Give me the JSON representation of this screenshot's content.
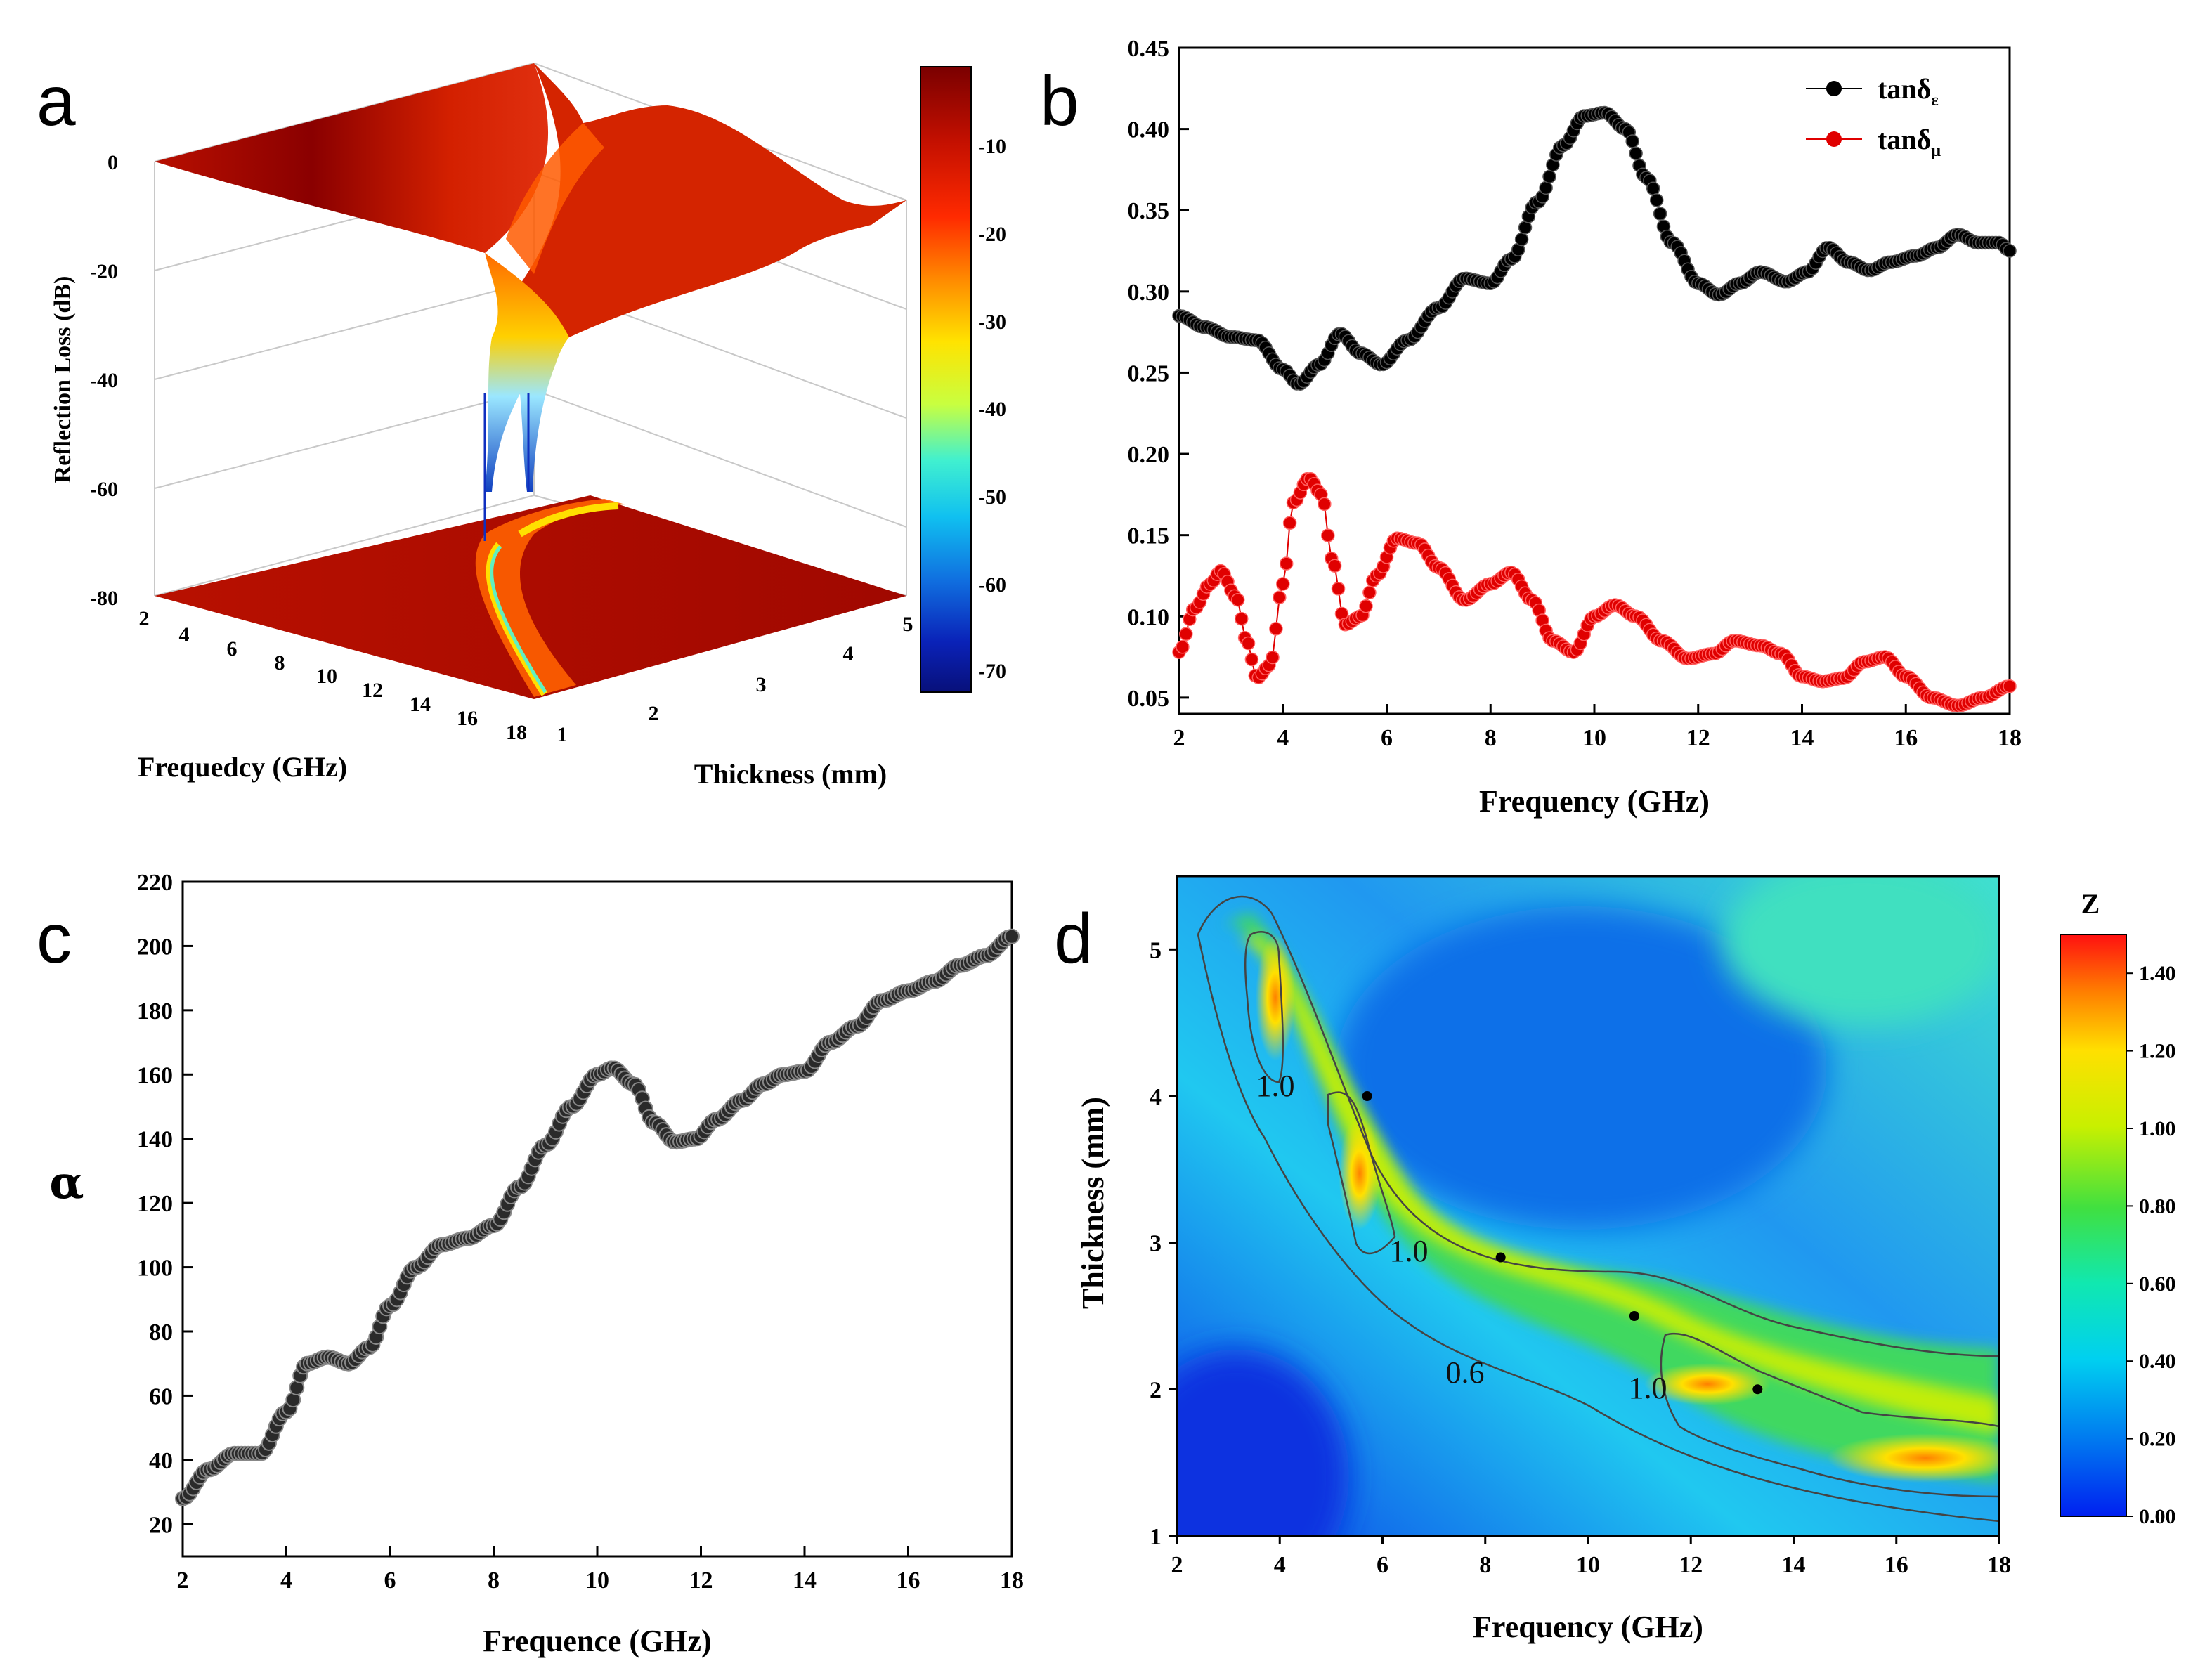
{
  "panels": {
    "a": {
      "letter": "a",
      "z_axis_title": "Reflection Loss (dB)",
      "z_ticks": [
        "0",
        "-20",
        "-40",
        "-60",
        "-80"
      ],
      "x_axis_title": "Frequedcy (GHz)",
      "x_ticks": [
        "2",
        "4",
        "6",
        "8",
        "10",
        "12",
        "14",
        "16",
        "18"
      ],
      "y_axis_title": "Thickness (mm)",
      "y_ticks": [
        "1",
        "2",
        "3",
        "4",
        "5"
      ],
      "colorbar_ticks": [
        "-10",
        "-20",
        "-30",
        "-40",
        "-50",
        "-60",
        "-70"
      ]
    },
    "b": {
      "letter": "b",
      "x_axis_title": "Frequency (GHz)",
      "x_ticks": [
        "2",
        "4",
        "6",
        "8",
        "10",
        "12",
        "14",
        "16",
        "18"
      ],
      "y_ticks": [
        "0.05",
        "0.10",
        "0.15",
        "0.20",
        "0.25",
        "0.30",
        "0.35",
        "0.40",
        "0.45"
      ],
      "legend": [
        {
          "base": "tanδ",
          "sub": "ε",
          "color": "#000000"
        },
        {
          "base": "tanδ",
          "sub": "μ",
          "color": "#e00000"
        }
      ]
    },
    "c": {
      "letter": "c",
      "x_axis_title": "Frequence (GHz)",
      "y_axis_title": "α",
      "x_ticks": [
        "2",
        "4",
        "6",
        "8",
        "10",
        "12",
        "14",
        "16",
        "18"
      ],
      "y_ticks": [
        "20",
        "40",
        "60",
        "80",
        "100",
        "120",
        "140",
        "160",
        "180",
        "200",
        "220"
      ]
    },
    "d": {
      "letter": "d",
      "x_axis_title": "Frequency (GHz)",
      "y_axis_title": "Thickness (mm)",
      "x_ticks": [
        "2",
        "4",
        "6",
        "8",
        "10",
        "12",
        "14",
        "16",
        "18"
      ],
      "y_ticks": [
        "1",
        "2",
        "3",
        "4",
        "5"
      ],
      "colorbar_title": "Z",
      "colorbar_ticks": [
        "0.00",
        "0.20",
        "0.40",
        "0.60",
        "0.80",
        "1.00",
        "1.20",
        "1.40"
      ],
      "contour_labels": [
        "1.0",
        "1.0",
        "1.0",
        "0.6"
      ]
    }
  },
  "chart_data": [
    {
      "panel": "a",
      "type": "surface3d",
      "title": "",
      "xlabel": "Frequedcy (GHz)",
      "ylabel": "Thickness (mm)",
      "zlabel": "Reflection Loss (dB)",
      "xlim": [
        2,
        18
      ],
      "ylim": [
        1,
        5
      ],
      "zlim": [
        -80,
        0
      ],
      "colorbar_range": [
        -73,
        -2
      ],
      "min_rl_db": -70,
      "note": "Reflection-loss surface; deep minimum along a narrow valley near 4-6 GHz"
    },
    {
      "panel": "b",
      "type": "line",
      "xlabel": "Frequency (GHz)",
      "ylabel": "",
      "xlim": [
        2,
        18
      ],
      "ylim": [
        0.04,
        0.45
      ],
      "series": [
        {
          "name": "tanδε",
          "color": "#000000",
          "x": [
            2,
            2.5,
            3,
            3.5,
            4,
            4.3,
            4.7,
            5.1,
            5.5,
            5.9,
            6.4,
            7,
            7.5,
            8,
            8.4,
            8.9,
            9.4,
            9.8,
            10.2,
            10.6,
            11,
            11.5,
            12,
            12.4,
            12.8,
            13.2,
            13.7,
            14.1,
            14.5,
            14.9,
            15.3,
            15.7,
            16.2,
            16.6,
            17,
            17.4,
            17.8,
            18
          ],
          "values": [
            0.285,
            0.278,
            0.272,
            0.27,
            0.252,
            0.243,
            0.255,
            0.274,
            0.262,
            0.255,
            0.27,
            0.29,
            0.308,
            0.305,
            0.32,
            0.355,
            0.39,
            0.408,
            0.41,
            0.4,
            0.37,
            0.33,
            0.305,
            0.298,
            0.305,
            0.312,
            0.306,
            0.312,
            0.327,
            0.318,
            0.313,
            0.318,
            0.322,
            0.327,
            0.335,
            0.33,
            0.33,
            0.325
          ]
        },
        {
          "name": "tanδμ",
          "color": "#e00000",
          "x": [
            2,
            2.3,
            2.6,
            2.8,
            3.1,
            3.3,
            3.5,
            3.75,
            4,
            4.2,
            4.5,
            4.75,
            4.95,
            5.2,
            5.5,
            5.8,
            6.2,
            6.6,
            7,
            7.5,
            8,
            8.4,
            8.8,
            9.2,
            9.6,
            10,
            10.4,
            10.8,
            11.3,
            11.8,
            12.3,
            12.7,
            13.2,
            13.6,
            14,
            14.4,
            14.8,
            15.2,
            15.6,
            16,
            16.5,
            17,
            17.5,
            18
          ],
          "values": [
            0.078,
            0.105,
            0.12,
            0.128,
            0.112,
            0.085,
            0.062,
            0.07,
            0.12,
            0.17,
            0.185,
            0.175,
            0.135,
            0.095,
            0.1,
            0.125,
            0.148,
            0.145,
            0.13,
            0.11,
            0.12,
            0.127,
            0.11,
            0.085,
            0.078,
            0.1,
            0.107,
            0.1,
            0.085,
            0.074,
            0.077,
            0.085,
            0.082,
            0.077,
            0.063,
            0.06,
            0.062,
            0.072,
            0.075,
            0.063,
            0.05,
            0.045,
            0.05,
            0.057
          ]
        }
      ]
    },
    {
      "panel": "c",
      "type": "line",
      "xlabel": "Frequence (GHz)",
      "ylabel": "α",
      "xlim": [
        2,
        18
      ],
      "ylim": [
        10,
        220
      ],
      "series": [
        {
          "name": "α",
          "color": "#000000",
          "x": [
            2,
            2.5,
            3,
            3.5,
            4,
            4.4,
            4.8,
            5.2,
            5.6,
            6,
            6.5,
            7,
            7.5,
            8,
            8.5,
            9,
            9.5,
            10,
            10.3,
            10.7,
            11.1,
            11.5,
            11.9,
            12.3,
            12.8,
            13.2,
            13.6,
            14,
            14.5,
            15,
            15.5,
            16,
            16.5,
            17,
            17.5,
            18
          ],
          "values": [
            28,
            37,
            42,
            42,
            55,
            70,
            72,
            70,
            75,
            88,
            100,
            107,
            109,
            113,
            125,
            138,
            150,
            160,
            162,
            157,
            145,
            139,
            140,
            146,
            152,
            157,
            160,
            161,
            170,
            175,
            183,
            186,
            189,
            194,
            197,
            203
          ]
        }
      ]
    },
    {
      "panel": "d",
      "type": "heatmap",
      "xlabel": "Frequency (GHz)",
      "ylabel": "Thickness (mm)",
      "zlabel": "Z",
      "xlim": [
        2,
        18
      ],
      "ylim": [
        1,
        5.5
      ],
      "zlim": [
        0,
        1.5
      ],
      "matching_points": [
        {
          "x": 5.7,
          "y": 4.0
        },
        {
          "x": 8.3,
          "y": 2.9
        },
        {
          "x": 10.9,
          "y": 2.5
        },
        {
          "x": 13.3,
          "y": 2.0
        }
      ],
      "contours": [
        {
          "level": 0.6,
          "label": "0.6"
        },
        {
          "level": 1.0,
          "label": "1.0"
        }
      ]
    }
  ]
}
